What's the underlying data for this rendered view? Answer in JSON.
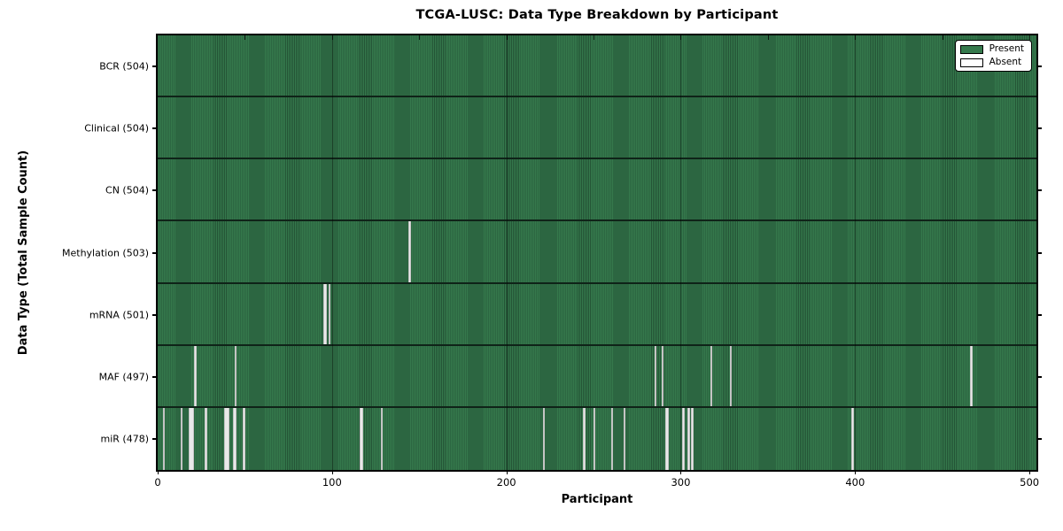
{
  "chart_data": {
    "type": "heatmap",
    "title": "TCGA-LUSC: Data Type Breakdown by Participant",
    "xlabel": "Participant",
    "ylabel": "Data Type (Total Sample Count)",
    "total_participants": 504,
    "xlim": [
      0,
      504
    ],
    "x_ticks": [
      0,
      100,
      200,
      300,
      400,
      500
    ],
    "minor_tick_step": 50,
    "grid_ticks": [
      100,
      200,
      300,
      400
    ],
    "legend": [
      {
        "name": "present",
        "label": "Present",
        "color": "#35794c"
      },
      {
        "name": "absent",
        "label": "Absent",
        "color": "#ffffff"
      }
    ],
    "colors": {
      "present_fill": "#35794c",
      "present_edge_dark": "#245436",
      "row_boundary": "#0f2318",
      "absent_fill": "#e9e9e9"
    },
    "rows": [
      {
        "name": "BCR",
        "label": "BCR (504)",
        "count": 504,
        "absent_participants": []
      },
      {
        "name": "Clinical",
        "label": "Clinical (504)",
        "count": 504,
        "absent_participants": []
      },
      {
        "name": "CN",
        "label": "CN (504)",
        "count": 504,
        "absent_participants": []
      },
      {
        "name": "Methylation",
        "label": "Methylation (503)",
        "count": 503,
        "absent_participants": [
          144
        ]
      },
      {
        "name": "mRNA",
        "label": "mRNA (501)",
        "count": 501,
        "absent_participants": [
          95,
          96,
          98
        ]
      },
      {
        "name": "MAF",
        "label": "MAF (497)",
        "count": 497,
        "absent_participants": [
          21,
          44,
          285,
          289,
          317,
          328,
          466
        ]
      },
      {
        "name": "miR",
        "label": "miR (478)",
        "count": 478,
        "absent_participants": [
          3,
          13,
          18,
          19,
          20,
          27,
          38,
          39,
          40,
          43,
          44,
          49,
          116,
          117,
          128,
          221,
          244,
          250,
          260,
          267,
          291,
          292,
          301,
          304,
          306,
          398
        ]
      }
    ]
  }
}
